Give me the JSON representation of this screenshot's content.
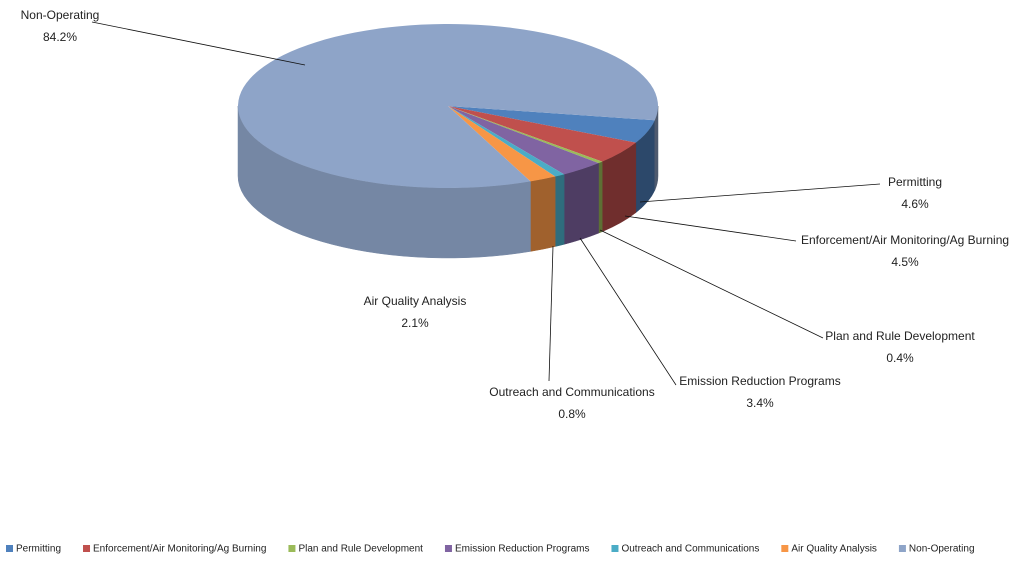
{
  "chart_data": {
    "type": "pie3d",
    "categories": [
      "Permitting",
      "Enforcement/Air Monitoring/Ag Burning",
      "Plan and Rule Development",
      "Emission Reduction Programs",
      "Outreach and Communications",
      "Air Quality Analysis",
      "Non-Operating"
    ],
    "values": [
      4.6,
      4.5,
      0.4,
      3.4,
      0.8,
      2.1,
      84.2
    ],
    "value_labels": [
      "4.6%",
      "4.5%",
      "0.4%",
      "3.4%",
      "0.8%",
      "2.1%",
      "84.2%"
    ],
    "colors": [
      "#4f81bd",
      "#c0504d",
      "#9bbb59",
      "#8064a2",
      "#4bacc6",
      "#f79646",
      "#8ea4c8"
    ],
    "legend": "bottom"
  }
}
